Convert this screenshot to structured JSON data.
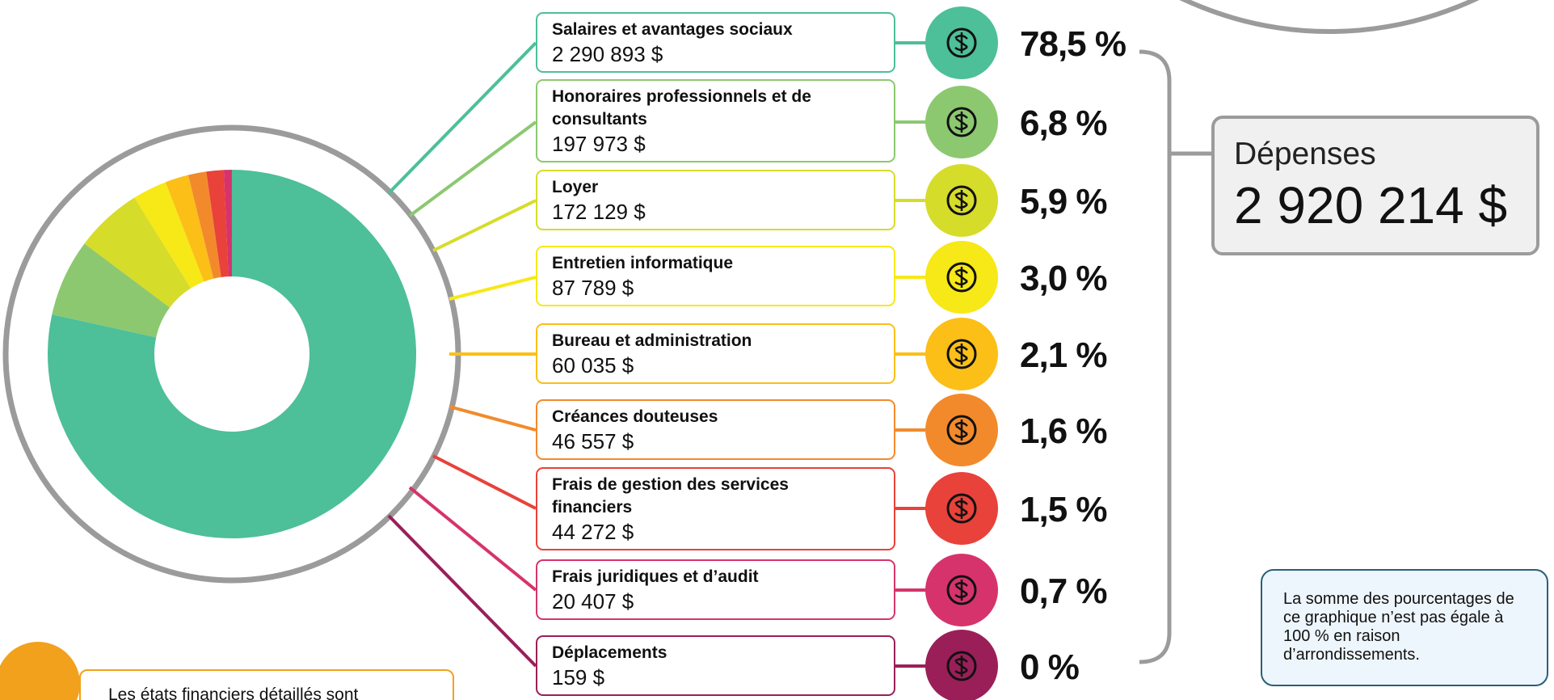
{
  "chart_data": {
    "type": "donut",
    "categories": [
      "Salaires et avantages sociaux",
      "Honoraires professionnels et de consultants",
      "Loyer",
      "Entretien informatique",
      "Bureau et administration",
      "Créances douteuses",
      "Frais de gestion des services financiers",
      "Frais juridiques et d’audit",
      "Déplacements"
    ],
    "values": [
      2290893,
      197973,
      172129,
      87789,
      60035,
      46557,
      44272,
      20407,
      159
    ],
    "value_labels": [
      "2 290 893 $",
      "197 973 $",
      "172 129 $",
      "87 789 $",
      "60 035 $",
      "46 557 $",
      "44 272 $",
      "20 407 $",
      "159 $"
    ],
    "shares": [
      78.5,
      6.8,
      5.9,
      3.0,
      2.1,
      1.6,
      1.5,
      0.7,
      0
    ],
    "share_labels": [
      "78,5 %",
      "6,8 %",
      "5,9 %",
      "3,0 %",
      "2,1 %",
      "1,6 %",
      "1,5 %",
      "0,7 %",
      "0 %"
    ],
    "colors": [
      "#4dbf99",
      "#8cc870",
      "#d6dc2a",
      "#f7e817",
      "#fbbf18",
      "#f28a2c",
      "#e8423a",
      "#d6336c",
      "#9a1f59"
    ],
    "total_title": "Dépenses",
    "total": 2920214,
    "total_label": "2 920 214 $",
    "note": "La somme des pourcentages de ce graphique n’est pas égale à 100 % en raison d’arrondissements.",
    "footer_text": "Les états financiers détaillés sont"
  }
}
